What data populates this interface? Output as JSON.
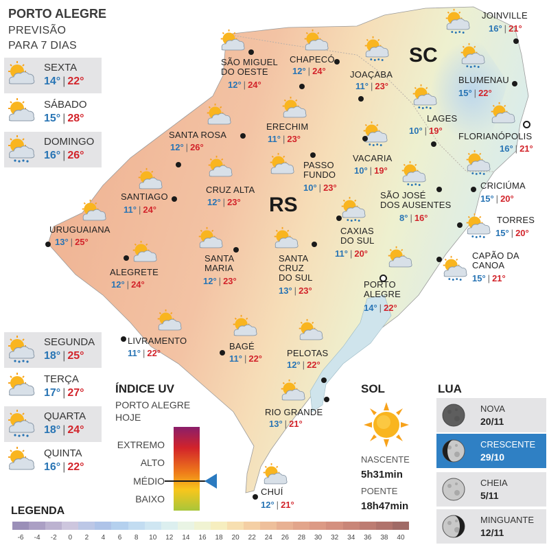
{
  "header": {
    "title": "PORTO ALEGRE",
    "subtitle_1": "PREVISÃO",
    "subtitle_2": "PARA 7 DIAS"
  },
  "week_top": [
    {
      "day": "SEXTA",
      "min": "14°",
      "max": "22°",
      "icon": "partly-cloudy-icon"
    },
    {
      "day": "SÁBADO",
      "min": "15°",
      "max": "28°",
      "icon": "partly-cloudy-icon"
    },
    {
      "day": "DOMINGO",
      "min": "16°",
      "max": "26°",
      "icon": "sun-cloud-rain-icon"
    }
  ],
  "week_bottom": [
    {
      "day": "SEGUNDA",
      "min": "18°",
      "max": "25°",
      "icon": "sun-cloud-rain-icon"
    },
    {
      "day": "TERÇA",
      "min": "17°",
      "max": "27°",
      "icon": "partly-cloudy-icon"
    },
    {
      "day": "QUARTA",
      "min": "18°",
      "max": "24°",
      "icon": "sun-cloud-rain-icon"
    },
    {
      "day": "QUINTA",
      "min": "16°",
      "max": "22°",
      "icon": "partly-cloudy-icon"
    }
  ],
  "states": {
    "rs": "RS",
    "sc": "SC"
  },
  "cities": [
    {
      "name": "JOINVILLE",
      "min": "16°",
      "max": "21°",
      "icon": "sun-cloud-rain-icon"
    },
    {
      "name": "SÃO MIGUEL\nDO OESTE",
      "min": "12°",
      "max": "24°",
      "icon": "partly-cloudy-icon"
    },
    {
      "name": "CHAPECÓ",
      "min": "12°",
      "max": "24°",
      "icon": "partly-cloudy-icon"
    },
    {
      "name": "JOAÇABA",
      "min": "11°",
      "max": "23°",
      "icon": "sun-cloud-rain-icon"
    },
    {
      "name": "BLUMENAU",
      "min": "15°",
      "max": "22°",
      "icon": "sun-cloud-rain-icon"
    },
    {
      "name": "LAGES",
      "min": "10°",
      "max": "19°",
      "icon": "sun-cloud-rain-icon"
    },
    {
      "name": "FLORIANÓPOLIS",
      "min": "16°",
      "max": "21°",
      "icon": "partly-cloudy-icon"
    },
    {
      "name": "SANTA ROSA",
      "min": "12°",
      "max": "26°",
      "icon": "partly-cloudy-icon"
    },
    {
      "name": "ERECHIM",
      "min": "11°",
      "max": "23°",
      "icon": "partly-cloudy-icon"
    },
    {
      "name": "VACARIA",
      "min": "10°",
      "max": "19°",
      "icon": "sun-cloud-rain-icon"
    },
    {
      "name": "PASSO\nFUNDO",
      "min": "10°",
      "max": "23°",
      "icon": "partly-cloudy-icon"
    },
    {
      "name": "CRUZ ALTA",
      "min": "12°",
      "max": "23°",
      "icon": "partly-cloudy-icon"
    },
    {
      "name": "SANTIAGO",
      "min": "11°",
      "max": "24°",
      "icon": "partly-cloudy-icon"
    },
    {
      "name": "CRICIÚMA",
      "min": "15°",
      "max": "20°",
      "icon": "sun-cloud-rain-icon"
    },
    {
      "name": "SÃO JOSÉ\nDOS AUSENTES",
      "min": "8°",
      "max": "16°",
      "icon": "sun-cloud-rain-icon"
    },
    {
      "name": "TORRES",
      "min": "15°",
      "max": "20°",
      "icon": "sun-cloud-rain-icon"
    },
    {
      "name": "URUGUAIANA",
      "min": "13°",
      "max": "25°",
      "icon": "partly-cloudy-icon"
    },
    {
      "name": "CAXIAS\nDO SUL",
      "min": "11°",
      "max": "20°",
      "icon": "sun-cloud-rain-icon"
    },
    {
      "name": "SANTA\nMARIA",
      "min": "12°",
      "max": "23°",
      "icon": "partly-cloudy-icon"
    },
    {
      "name": "SANTA\nCRUZ\nDO SUL",
      "min": "13°",
      "max": "23°",
      "icon": "partly-cloudy-icon"
    },
    {
      "name": "ALEGRETE",
      "min": "12°",
      "max": "24°",
      "icon": "partly-cloudy-icon"
    },
    {
      "name": "CAPÃO DA\nCANOA",
      "min": "15°",
      "max": "21°",
      "icon": "sun-cloud-rain-icon"
    },
    {
      "name": "PORTO\nALEGRE",
      "min": "14°",
      "max": "22°",
      "icon": "partly-cloudy-icon"
    },
    {
      "name": "LIVRAMENTO",
      "min": "11°",
      "max": "22°",
      "icon": "partly-cloudy-icon"
    },
    {
      "name": "BAGÉ",
      "min": "11°",
      "max": "22°",
      "icon": "partly-cloudy-icon"
    },
    {
      "name": "PELOTAS",
      "min": "12°",
      "max": "22°",
      "icon": "partly-cloudy-icon"
    },
    {
      "name": "RIO GRANDE",
      "min": "13°",
      "max": "21°",
      "icon": "partly-cloudy-icon"
    },
    {
      "name": "CHUÍ",
      "min": "12°",
      "max": "21°",
      "icon": "partly-cloudy-icon"
    }
  ],
  "uv": {
    "title": "ÍNDICE UV",
    "sub_1": "PORTO ALEGRE",
    "sub_2": "HOJE",
    "levels": [
      "EXTREMO",
      "ALTO",
      "MÉDIO",
      "BAIXO"
    ],
    "current": "MÉDIO",
    "marker_color": "#2a7ac0"
  },
  "sol": {
    "title": "SOL",
    "rise_label": "NASCENTE",
    "rise": "5h31min",
    "set_label": "POENTE",
    "set": "18h47min"
  },
  "lua": {
    "title": "LUA",
    "phases": [
      {
        "name": "NOVA",
        "date": "20/11",
        "active": false
      },
      {
        "name": "CRESCENTE",
        "date": "29/10",
        "active": true
      },
      {
        "name": "CHEIA",
        "date": "5/11",
        "active": false
      },
      {
        "name": "MINGUANTE",
        "date": "12/11",
        "active": false
      }
    ]
  },
  "legend": {
    "title": "LEGENDA",
    "ticks": [
      "-6",
      "-4",
      "-2",
      "0",
      "2",
      "4",
      "6",
      "8",
      "10",
      "12",
      "14",
      "16",
      "18",
      "20",
      "22",
      "24",
      "26",
      "28",
      "30",
      "32",
      "34",
      "36",
      "38",
      "40"
    ],
    "colors": [
      "#9a8fb8",
      "#ab9fc4",
      "#bcb2d0",
      "#cdc6de",
      "#bcc7e6",
      "#aec3e8",
      "#b4d0ee",
      "#c2dcf1",
      "#cfe6f2",
      "#dcefef",
      "#e9f4e4",
      "#f0f3d2",
      "#f6eebf",
      "#f7dfb0",
      "#f4cfa4",
      "#eebf9b",
      "#e8b193",
      "#e2a58b",
      "#dc9a85",
      "#d4907f",
      "#c98678",
      "#bd7c72",
      "#b0736c",
      "#a06a66"
    ]
  },
  "colors": {
    "rs_fill": "#f0b79a",
    "sc_fill": "#e6efe0",
    "min_temp": "#2874b4",
    "max_temp": "#d2232a",
    "active_moon": "#2f80c4"
  }
}
